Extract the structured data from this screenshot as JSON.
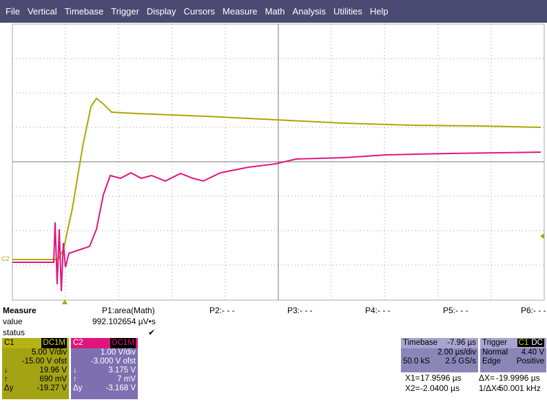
{
  "menu": [
    "File",
    "Vertical",
    "Timebase",
    "Trigger",
    "Display",
    "Cursors",
    "Measure",
    "Math",
    "Analysis",
    "Utilities",
    "Help"
  ],
  "display": {
    "trace_label": "C2"
  },
  "measure": {
    "title": "Measure",
    "row_labels": [
      "value",
      "status"
    ],
    "params": [
      "P1:area(Math)",
      "P2:- - -",
      "P3:- - -",
      "P4:- - -",
      "P5:- - -",
      "P6:- - -"
    ],
    "value": "992.102654 µV•s",
    "status": "✔"
  },
  "channels": [
    {
      "name": "C1",
      "coupling": "DC1M",
      "scale": "5.00 V/div",
      "offset": "-15.00 V ofst",
      "rows": [
        [
          "↓",
          "19.96 V"
        ],
        [
          "↑",
          "690 mV"
        ],
        [
          "Δy",
          "-19.27 V"
        ]
      ]
    },
    {
      "name": "C2",
      "coupling": "DC1M",
      "scale": "1.00 V/div",
      "offset": "-3.000 V ofst",
      "rows": [
        [
          "↓",
          "3.175 V"
        ],
        [
          "↑",
          "7 mV"
        ],
        [
          "Δy",
          "-3.168 V"
        ]
      ]
    }
  ],
  "timebase": {
    "title": "Timebase",
    "delay": "-7.96 µs",
    "scale": "2.00 µs/div",
    "samples": "50.0 kS",
    "rate": "2.5 GS/s"
  },
  "trigger": {
    "title": "Trigger",
    "source": "C1",
    "coupling": "DC",
    "mode": "Normal",
    "level": "4.40 V",
    "type": "Edge",
    "slope": "Positive"
  },
  "cursors": [
    [
      "X1=",
      "17.9596 µs",
      "ΔX=",
      "-19.9996 µs"
    ],
    [
      "X2=",
      "-2.0400 µs",
      "1/ΔX=",
      "-50.001 kHz"
    ]
  ]
}
